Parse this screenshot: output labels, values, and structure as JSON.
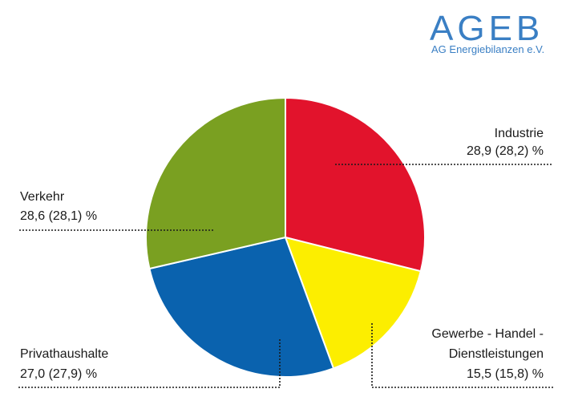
{
  "logo": {
    "name": "AGEB",
    "subtitle": "AG Energiebilanzen e.V.",
    "color": "#3a7fc4"
  },
  "chart_data": {
    "type": "pie",
    "unit": "%",
    "start_angle_deg": 0,
    "direction": "clockwise",
    "slices": [
      {
        "label_lines": [
          "Industrie"
        ],
        "value": 28.9,
        "value_text": "28,9 (28,2) %",
        "color": "#e2132c"
      },
      {
        "label_lines": [
          "Gewerbe - Handel -",
          "Dienstleistungen"
        ],
        "value": 15.5,
        "value_text": "15,5 (15,8) %",
        "color": "#fcee00"
      },
      {
        "label_lines": [
          "Privathaushalte"
        ],
        "value": 27.0,
        "value_text": "27,0 (27,9) %",
        "color": "#0a62ae"
      },
      {
        "label_lines": [
          "Verkehr"
        ],
        "value": 28.6,
        "value_text": "28,6 (28,1) %",
        "color": "#7aa021"
      }
    ]
  }
}
